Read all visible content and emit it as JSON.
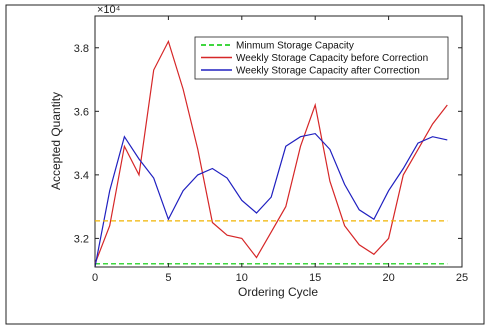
{
  "chart_data": {
    "type": "line",
    "xlabel": "Ordering Cycle",
    "ylabel": "Accepted Quantity",
    "y_exponent_label": "×10⁴",
    "xlim": [
      0,
      25
    ],
    "ylim": [
      31100,
      39000
    ],
    "x_ticks": [
      0,
      5,
      10,
      15,
      20,
      25
    ],
    "y_ticks": [
      32000,
      34000,
      36000,
      38000
    ],
    "y_tick_labels": [
      "3.2",
      "3.4",
      "3.6",
      "3.8"
    ],
    "grid": false,
    "legend_position": "top-right",
    "series": [
      {
        "name": "Minmum Storage Capacity",
        "color": "#00c800",
        "style": "dashed",
        "x": [
          0,
          24
        ],
        "values": [
          31200,
          31200
        ]
      },
      {
        "name": "Weekly Storage Capacity before Correction",
        "color": "#d62728",
        "style": "solid",
        "x": [
          0,
          1,
          2,
          3,
          4,
          5,
          6,
          7,
          8,
          9,
          10,
          11,
          12,
          13,
          14,
          15,
          16,
          17,
          18,
          19,
          20,
          21,
          22,
          23,
          24
        ],
        "values": [
          31200,
          32400,
          34900,
          34000,
          37300,
          38200,
          36700,
          34800,
          32500,
          32100,
          32000,
          31400,
          32200,
          33000,
          34900,
          36200,
          33800,
          32400,
          31800,
          31500,
          32000,
          34000,
          34800,
          35600,
          36200
        ]
      },
      {
        "name": "Weekly Storage Capacity after Correction",
        "color": "#2020c0",
        "style": "solid",
        "x": [
          0,
          1,
          2,
          3,
          4,
          5,
          6,
          7,
          8,
          9,
          10,
          11,
          12,
          13,
          14,
          15,
          16,
          17,
          18,
          19,
          20,
          21,
          22,
          23,
          24
        ],
        "values": [
          31100,
          33500,
          35200,
          34500,
          33900,
          32600,
          33500,
          34000,
          34200,
          33900,
          33200,
          32800,
          33300,
          34900,
          35200,
          35300,
          34800,
          33700,
          32900,
          32600,
          33500,
          34200,
          35000,
          35200,
          35100
        ]
      },
      {
        "name": "",
        "color": "#f0b400",
        "style": "dashed",
        "x": [
          0,
          24
        ],
        "values": [
          32550,
          32550
        ]
      }
    ]
  }
}
